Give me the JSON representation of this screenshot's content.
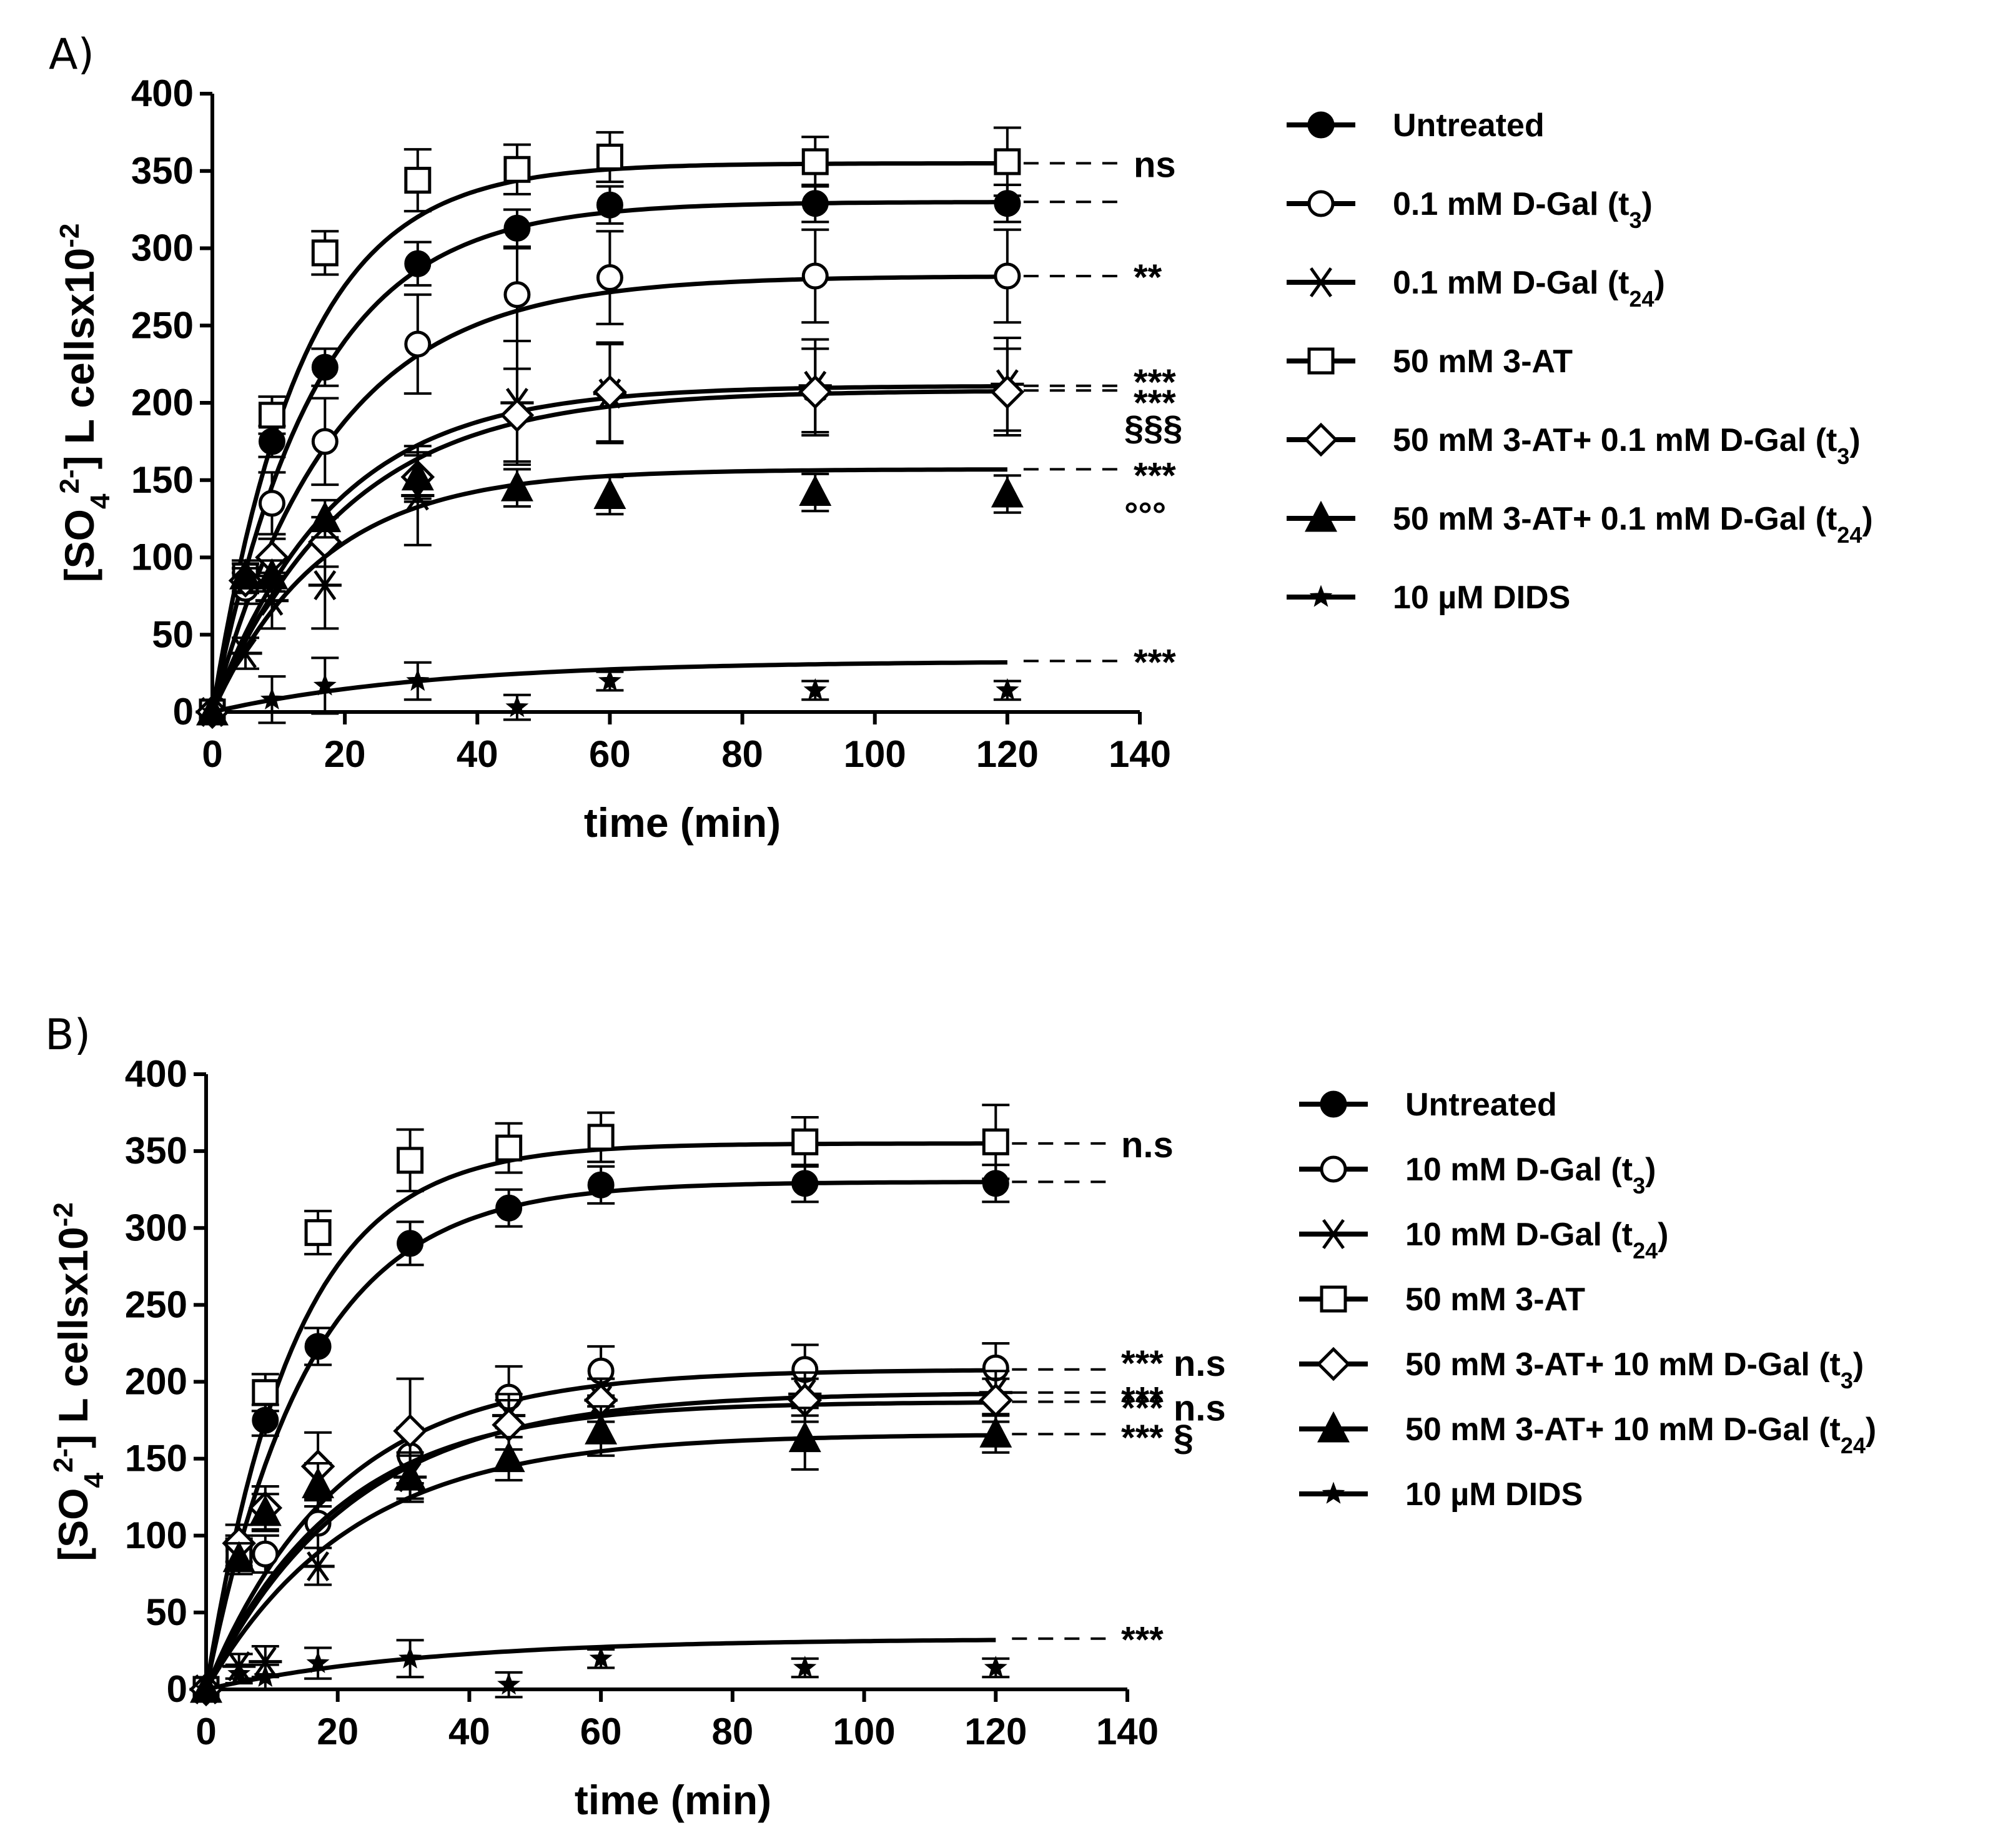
{
  "chart_data": [
    {
      "panel": "A)",
      "type": "line",
      "xlabel": "time (min)",
      "ylabel": "[SO42-] L cellsx10-2",
      "xlim": [
        0,
        140
      ],
      "ylim": [
        0,
        400
      ],
      "xticks": [
        0,
        20,
        40,
        60,
        80,
        100,
        120,
        140
      ],
      "yticks": [
        0,
        50,
        100,
        150,
        200,
        250,
        300,
        350,
        400
      ],
      "legend_position": "right",
      "series": [
        {
          "name": "Untreated",
          "marker": "circle-filled",
          "plateau": 330,
          "k": 0.065,
          "points": [
            [
              0,
              0
            ],
            [
              5,
              85
            ],
            [
              9,
              175
            ],
            [
              17,
              223
            ],
            [
              31,
              290
            ],
            [
              46,
              313
            ],
            [
              60,
              328
            ],
            [
              91,
              329
            ],
            [
              120,
              329
            ]
          ],
          "errors": [
            0,
            8,
            10,
            12,
            14,
            12,
            12,
            12,
            12
          ],
          "annotation": ""
        },
        {
          "name": "0.1 mM D-Gal (t3)",
          "name_main": "0.1 mM D-Gal (t",
          "name_sub": "3",
          "name_tail": ")",
          "marker": "circle-open",
          "plateau": 282,
          "k": 0.055,
          "points": [
            [
              0,
              0
            ],
            [
              5,
              80
            ],
            [
              9,
              135
            ],
            [
              17,
              175
            ],
            [
              31,
              238
            ],
            [
              46,
              270
            ],
            [
              60,
              281
            ],
            [
              91,
              282
            ],
            [
              120,
              282
            ]
          ],
          "errors": [
            0,
            10,
            20,
            28,
            32,
            30,
            30,
            30,
            30
          ],
          "annotation": "**"
        },
        {
          "name": "0.1 mM D-Gal (t24)",
          "name_main": "0.1 mM D-Gal (t",
          "name_sub": "24",
          "name_tail": ")",
          "marker": "asterisk",
          "plateau": 211,
          "k": 0.055,
          "points": [
            [
              0,
              0
            ],
            [
              5,
              38
            ],
            [
              9,
              72
            ],
            [
              17,
              82
            ],
            [
              31,
              140
            ],
            [
              46,
              200
            ],
            [
              60,
              206
            ],
            [
              91,
              211
            ],
            [
              120,
              212
            ]
          ],
          "errors": [
            0,
            10,
            18,
            28,
            32,
            40,
            32,
            30,
            30
          ],
          "annotation": "***"
        },
        {
          "name": "50 mM 3-AT",
          "marker": "square-open",
          "plateau": 355,
          "k": 0.075,
          "points": [
            [
              0,
              0
            ],
            [
              5,
              88
            ],
            [
              9,
              192
            ],
            [
              17,
              297
            ],
            [
              31,
              344
            ],
            [
              46,
              351
            ],
            [
              60,
              359
            ],
            [
              91,
              356
            ],
            [
              120,
              356
            ]
          ],
          "errors": [
            0,
            10,
            12,
            14,
            20,
            16,
            16,
            16,
            22
          ],
          "annotation": "ns"
        },
        {
          "name": "50 mM 3-AT+ 0.1 mM D-Gal (t3)",
          "name_main": "50 mM 3-AT+ 0.1 mM D-Gal (t",
          "name_sub": "3",
          "name_tail": ")",
          "marker": "diamond-open",
          "plateau": 208,
          "k": 0.05,
          "points": [
            [
              0,
              0
            ],
            [
              5,
              85
            ],
            [
              9,
              100
            ],
            [
              17,
              110
            ],
            [
              31,
              152
            ],
            [
              46,
              192
            ],
            [
              60,
              207
            ],
            [
              91,
              207
            ],
            [
              120,
              207
            ]
          ],
          "errors": [
            0,
            8,
            12,
            16,
            16,
            30,
            32,
            28,
            28
          ],
          "annotation": "***"
        },
        {
          "name": "50 mM 3-AT+ 0.1 mM D-Gal (t24)",
          "name_main": "50 mM 3-AT+ 0.1 mM D-Gal (t",
          "name_sub": "24",
          "name_tail": ")",
          "marker": "triangle-filled",
          "plateau": 157,
          "k": 0.06,
          "points": [
            [
              0,
              0
            ],
            [
              5,
              88
            ],
            [
              9,
              88
            ],
            [
              17,
              125
            ],
            [
              31,
              152
            ],
            [
              46,
              145
            ],
            [
              60,
              140
            ],
            [
              91,
              142
            ],
            [
              120,
              141
            ]
          ],
          "errors": [
            0,
            8,
            10,
            12,
            14,
            12,
            12,
            12,
            12
          ],
          "annotation": "***"
        },
        {
          "name": "10 µM DIDS",
          "marker": "star-filled",
          "plateau": 33,
          "k": 0.03,
          "points": [
            [
              0,
              0
            ],
            [
              9,
              8
            ],
            [
              17,
              17
            ],
            [
              31,
              20
            ],
            [
              46,
              3
            ],
            [
              60,
              20
            ],
            [
              91,
              14
            ],
            [
              120,
              14
            ]
          ],
          "errors": [
            0,
            15,
            18,
            12,
            8,
            6,
            6,
            6
          ],
          "annotation": "***"
        }
      ],
      "extra_annotations": [
        "§§§",
        "°°°"
      ]
    },
    {
      "panel": "B)",
      "type": "line",
      "xlabel": "time (min)",
      "ylabel": "[SO42-] L cellsx10-2",
      "xlim": [
        0,
        140
      ],
      "ylim": [
        0,
        400
      ],
      "xticks": [
        0,
        20,
        40,
        60,
        80,
        100,
        120,
        140
      ],
      "yticks": [
        0,
        50,
        100,
        150,
        200,
        250,
        300,
        350,
        400
      ],
      "legend_position": "right",
      "series": [
        {
          "name": "Untreated",
          "marker": "circle-filled",
          "plateau": 330,
          "k": 0.065,
          "points": [
            [
              0,
              0
            ],
            [
              5,
              85
            ],
            [
              9,
              175
            ],
            [
              17,
              223
            ],
            [
              31,
              290
            ],
            [
              46,
              313
            ],
            [
              60,
              328
            ],
            [
              91,
              329
            ],
            [
              120,
              329
            ]
          ],
          "errors": [
            0,
            8,
            10,
            12,
            14,
            12,
            12,
            12,
            12
          ],
          "annotation": ""
        },
        {
          "name": "10 mM D-Gal (t3)",
          "name_main": "10 mM D-Gal (t",
          "name_sub": "3",
          "name_tail": ")",
          "marker": "circle-open",
          "plateau": 208,
          "k": 0.05,
          "points": [
            [
              0,
              0
            ],
            [
              5,
              90
            ],
            [
              9,
              88
            ],
            [
              17,
              108
            ],
            [
              31,
              152
            ],
            [
              46,
              190
            ],
            [
              60,
              207
            ],
            [
              91,
              208
            ],
            [
              120,
              209
            ]
          ],
          "errors": [
            0,
            10,
            12,
            16,
            18,
            20,
            16,
            16,
            16
          ],
          "annotation": "*** n.s"
        },
        {
          "name": "10 mM D-Gal (t24)",
          "name_main": "10 mM D-Gal (t",
          "name_sub": "24",
          "name_tail": ")",
          "marker": "asterisk",
          "plateau": 193,
          "k": 0.045,
          "points": [
            [
              0,
              0
            ],
            [
              5,
              15
            ],
            [
              9,
              18
            ],
            [
              17,
              80
            ],
            [
              31,
              138
            ],
            [
              46,
              178
            ],
            [
              60,
              188
            ],
            [
              91,
              192
            ],
            [
              120,
              193
            ]
          ],
          "errors": [
            0,
            8,
            10,
            12,
            16,
            14,
            14,
            14,
            14
          ],
          "annotation": "***"
        },
        {
          "name": "50 mM 3-AT",
          "marker": "square-open",
          "plateau": 355,
          "k": 0.075,
          "points": [
            [
              0,
              0
            ],
            [
              5,
              88
            ],
            [
              9,
              193
            ],
            [
              17,
              297
            ],
            [
              31,
              344
            ],
            [
              46,
              352
            ],
            [
              60,
              359
            ],
            [
              91,
              356
            ],
            [
              120,
              356
            ]
          ],
          "errors": [
            0,
            10,
            12,
            14,
            20,
            16,
            16,
            16,
            24
          ],
          "annotation": "n.s"
        },
        {
          "name": "50 mM 3-AT+ 10 mM D-Gal (t3)",
          "name_main": "50 mM 3-AT+ 10 mM D-Gal (t",
          "name_sub": "3",
          "name_tail": ")",
          "marker": "diamond-open",
          "plateau": 187,
          "k": 0.05,
          "points": [
            [
              0,
              0
            ],
            [
              5,
              95
            ],
            [
              9,
              118
            ],
            [
              17,
              145
            ],
            [
              31,
              168
            ],
            [
              46,
              172
            ],
            [
              60,
              188
            ],
            [
              91,
              188
            ],
            [
              120,
              188
            ]
          ],
          "errors": [
            0,
            12,
            14,
            22,
            34,
            16,
            14,
            14,
            14
          ],
          "annotation": "*** n.s"
        },
        {
          "name": "50 mM 3-AT+ 10 mM D-Gal (t24)",
          "name_main": "50 mM 3-AT+ 10 mM D-Gal (t",
          "name_sub": "24",
          "name_tail": ")",
          "marker": "triangle-filled",
          "plateau": 166,
          "k": 0.045,
          "points": [
            [
              0,
              0
            ],
            [
              5,
              85
            ],
            [
              9,
              115
            ],
            [
              17,
              133
            ],
            [
              31,
              138
            ],
            [
              46,
              150
            ],
            [
              60,
              168
            ],
            [
              91,
              163
            ],
            [
              120,
              166
            ]
          ],
          "errors": [
            0,
            10,
            12,
            14,
            14,
            14,
            16,
            20,
            12
          ],
          "annotation": "*** §"
        },
        {
          "name": "10 µM DIDS",
          "marker": "star-filled",
          "plateau": 33,
          "k": 0.03,
          "points": [
            [
              0,
              0
            ],
            [
              5,
              10
            ],
            [
              9,
              8
            ],
            [
              17,
              17
            ],
            [
              31,
              20
            ],
            [
              46,
              3
            ],
            [
              60,
              20
            ],
            [
              91,
              14
            ],
            [
              120,
              14
            ]
          ],
          "errors": [
            0,
            6,
            8,
            10,
            12,
            8,
            6,
            6,
            6
          ],
          "annotation": "***"
        }
      ],
      "extra_annotations": []
    }
  ]
}
